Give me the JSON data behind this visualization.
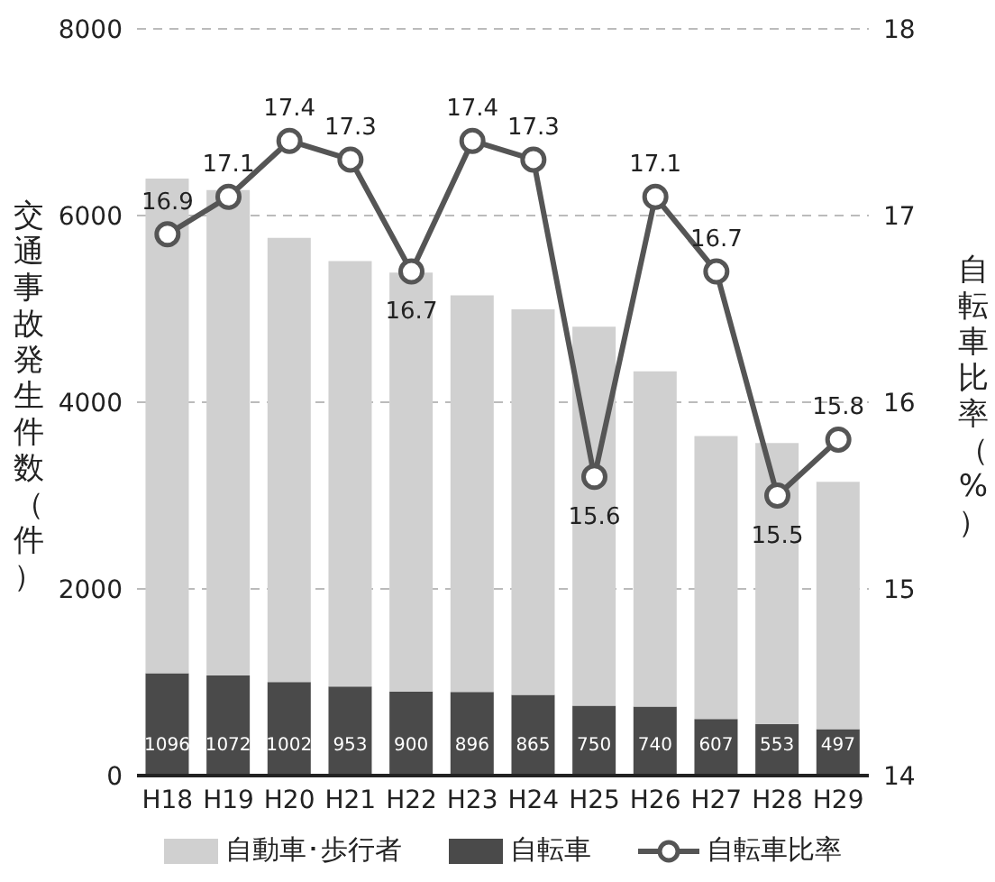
{
  "chart_data": {
    "type": "bar",
    "stacked": true,
    "categories": [
      "H18",
      "H19",
      "H20",
      "H21",
      "H22",
      "H23",
      "H24",
      "H25",
      "H26",
      "H27",
      "H28",
      "H29"
    ],
    "ylabel": "交通事故発生件数（件）",
    "y2label": "自転車比率（%）",
    "ylim": [
      0,
      8000
    ],
    "yticks": [
      0,
      2000,
      4000,
      6000,
      8000
    ],
    "y2lim": [
      14,
      18
    ],
    "y2ticks": [
      14,
      15,
      16,
      17,
      18
    ],
    "grid": "y",
    "legend": "bottom",
    "marker": "circle",
    "line_style": "solid",
    "series": [
      {
        "name": "自転車",
        "color": "#4a4a4a",
        "values": [
          1096,
          1072,
          1002,
          953,
          900,
          896,
          865,
          750,
          740,
          607,
          553,
          497
        ],
        "value_labels": [
          "1096",
          "1072",
          "1002",
          "953",
          "900",
          "896",
          "865",
          "750",
          "740",
          "607",
          "553",
          "497"
        ]
      },
      {
        "name": "自動車･歩行者",
        "color": "#d0d0d0",
        "values": [
          5300,
          5200,
          4760,
          4560,
          4490,
          4250,
          4130,
          4060,
          3590,
          3030,
          3010,
          2650
        ]
      },
      {
        "name": "自転車比率",
        "type": "line",
        "axis": "y2",
        "color": "#555555",
        "values": [
          16.9,
          17.1,
          17.4,
          17.3,
          16.7,
          17.4,
          17.3,
          15.6,
          17.1,
          16.7,
          15.5,
          15.8
        ],
        "value_labels": [
          "16.9",
          "17.1",
          "17.4",
          "17.3",
          "16.7",
          "17.4",
          "17.3",
          "15.6",
          "17.1",
          "16.7",
          "15.5",
          "15.8"
        ]
      }
    ]
  }
}
